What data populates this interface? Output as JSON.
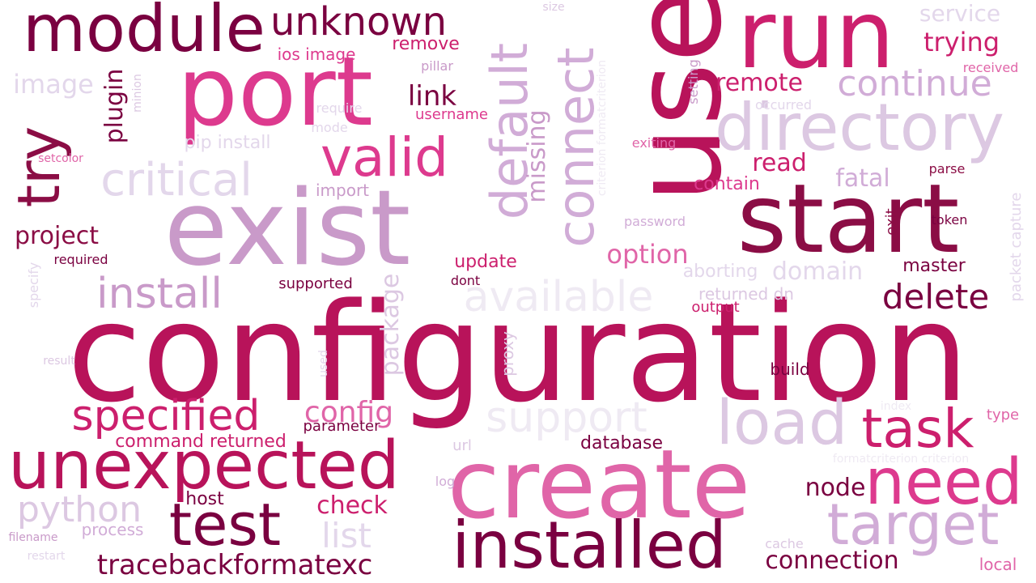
{
  "palette": {
    "darkest": "#7a0040",
    "dark": "#8b0d45",
    "deep": "#9d1452",
    "crimson": "#b8135a",
    "raspberry": "#cc1f6d",
    "magenta": "#dd3a8e",
    "pink": "#e065a8",
    "orchid": "#c99ac9",
    "lilac": "#d1acd7",
    "light-lilac": "#dcc8e2",
    "pale-lilac": "#e3d7eb",
    "faint-lavender": "#efeaf3"
  },
  "words": [
    {
      "text": "configuration",
      "color": "crimson"
    },
    {
      "text": "create",
      "color": "pink"
    },
    {
      "text": "exist",
      "color": "orchid"
    },
    {
      "text": "use",
      "color": "crimson"
    },
    {
      "text": "start",
      "color": "dark"
    },
    {
      "text": "port",
      "color": "magenta"
    },
    {
      "text": "run",
      "color": "raspberry"
    },
    {
      "text": "installed",
      "color": "darkest"
    },
    {
      "text": "unexpected",
      "color": "crimson"
    },
    {
      "text": "directory",
      "color": "light-lilac"
    },
    {
      "text": "module",
      "color": "darkest"
    },
    {
      "text": "test",
      "color": "darkest"
    },
    {
      "text": "target",
      "color": "lilac"
    },
    {
      "text": "need",
      "color": "magenta"
    },
    {
      "text": "load",
      "color": "light-lilac"
    },
    {
      "text": "task",
      "color": "raspberry"
    },
    {
      "text": "default",
      "color": "lilac"
    },
    {
      "text": "connect",
      "color": "lilac"
    },
    {
      "text": "valid",
      "color": "magenta"
    },
    {
      "text": "specified",
      "color": "raspberry"
    },
    {
      "text": "try",
      "color": "dark"
    },
    {
      "text": "unknown",
      "color": "darkest"
    },
    {
      "text": "critical",
      "color": "pale-lilac"
    },
    {
      "text": "available",
      "color": "faint-lavender"
    },
    {
      "text": "support",
      "color": "faint-lavender"
    },
    {
      "text": "install",
      "color": "orchid"
    },
    {
      "text": "continue",
      "color": "lilac"
    },
    {
      "text": "python",
      "color": "light-lilac"
    },
    {
      "text": "tracebackformatexc",
      "color": "darkest"
    },
    {
      "text": "delete",
      "color": "darkest"
    },
    {
      "text": "connection",
      "color": "darkest"
    },
    {
      "text": "image",
      "color": "pale-lilac"
    },
    {
      "text": "list",
      "color": "pale-lilac"
    },
    {
      "text": "project",
      "color": "dark"
    },
    {
      "text": "package",
      "color": "light-lilac"
    },
    {
      "text": "missing",
      "color": "orchid"
    },
    {
      "text": "trying",
      "color": "raspberry"
    },
    {
      "text": "domain",
      "color": "pale-lilac"
    },
    {
      "text": "option",
      "color": "pink"
    },
    {
      "text": "remote",
      "color": "raspberry"
    },
    {
      "text": "check",
      "color": "raspberry"
    },
    {
      "text": "node",
      "color": "darkest"
    },
    {
      "text": "fatal",
      "color": "lilac"
    },
    {
      "text": "config",
      "color": "pink"
    },
    {
      "text": "link",
      "color": "darkest"
    },
    {
      "text": "plugin",
      "color": "darkest"
    },
    {
      "text": "service",
      "color": "pale-lilac"
    },
    {
      "text": "read",
      "color": "raspberry"
    },
    {
      "text": "command returned",
      "color": "raspberry"
    },
    {
      "text": "update",
      "color": "raspberry"
    },
    {
      "text": "database",
      "color": "darkest"
    },
    {
      "text": "host",
      "color": "darkest"
    },
    {
      "text": "pip install",
      "color": "pale-lilac"
    },
    {
      "text": "master",
      "color": "darkest"
    },
    {
      "text": "contain",
      "color": "magenta"
    },
    {
      "text": "aborting",
      "color": "pale-lilac"
    },
    {
      "text": "remove",
      "color": "raspberry"
    },
    {
      "text": "process",
      "color": "lilac"
    },
    {
      "text": "build",
      "color": "darkest"
    },
    {
      "text": "ios image",
      "color": "magenta"
    },
    {
      "text": "returned dn",
      "color": "light-lilac"
    },
    {
      "text": "proxy",
      "color": "light-lilac"
    },
    {
      "text": "output",
      "color": "raspberry"
    },
    {
      "text": "parameter",
      "color": "darkest"
    },
    {
      "text": "supported",
      "color": "darkest"
    },
    {
      "text": "import",
      "color": "orchid"
    },
    {
      "text": "username",
      "color": "magenta"
    },
    {
      "text": "url",
      "color": "light-lilac"
    },
    {
      "text": "local",
      "color": "pink"
    },
    {
      "text": "setting",
      "color": "orchid"
    },
    {
      "text": "exit",
      "color": "dark"
    },
    {
      "text": "dont",
      "color": "darkest"
    },
    {
      "text": "packet capture",
      "color": "pale-lilac"
    },
    {
      "text": "required",
      "color": "darkest"
    },
    {
      "text": "type",
      "color": "pink"
    },
    {
      "text": "parse",
      "color": "dark"
    },
    {
      "text": "token",
      "color": "darkest"
    },
    {
      "text": "password",
      "color": "lilac"
    },
    {
      "text": "exiting",
      "color": "pink"
    },
    {
      "text": "received",
      "color": "pink"
    },
    {
      "text": "pillar",
      "color": "orchid"
    },
    {
      "text": "require",
      "color": "pale-lilac"
    },
    {
      "text": "mode",
      "color": "pale-lilac"
    },
    {
      "text": "setcolor",
      "color": "pink"
    },
    {
      "text": "filename",
      "color": "orchid"
    },
    {
      "text": "log",
      "color": "lilac"
    },
    {
      "text": "used",
      "color": "pale-lilac"
    },
    {
      "text": "result",
      "color": "light-lilac"
    },
    {
      "text": "specify",
      "color": "pale-lilac"
    },
    {
      "text": "restart",
      "color": "pale-lilac"
    },
    {
      "text": "index",
      "color": "faint-lavender"
    },
    {
      "text": "cache",
      "color": "light-lilac"
    },
    {
      "text": "minion",
      "color": "light-lilac"
    },
    {
      "text": "occurred",
      "color": "pale-lilac"
    },
    {
      "text": "size",
      "color": "light-lilac"
    },
    {
      "text": "criterion formatcriterion",
      "color": "faint-lavender"
    },
    {
      "text": "formatcriterion criterion",
      "color": "faint-lavender"
    }
  ]
}
